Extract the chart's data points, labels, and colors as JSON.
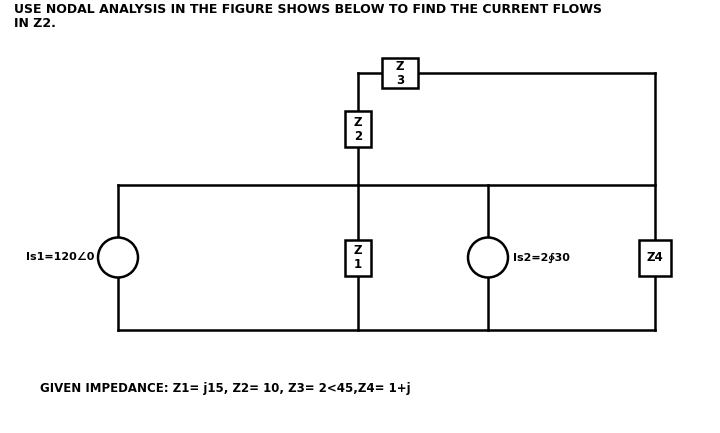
{
  "title_line1": "USE NODAL ANALYSIS IN THE FIGURE SHOWS BELOW TO FIND THE CURRENT FLOWS",
  "title_line2": "IN Z2.",
  "given": "GIVEN IMPEDANCE: Z1= j15, Z2= 10, Z3= 2<45,Z4= 1+j",
  "bg_color": "#ffffff",
  "line_color": "#000000",
  "text_color": "#000000",
  "Is1_label": "Is1=120∠0",
  "Is2_label": "Is2=2∲30",
  "Z1_label": "Z\n1",
  "Z2_label": "Z\n2",
  "Z3_label": "Z\n3",
  "Z4_label": "Z4",
  "lw": 1.8,
  "title_fontsize": 9.0,
  "given_fontsize": 8.5,
  "label_fontsize": 8.0,
  "component_fontsize": 8.5
}
